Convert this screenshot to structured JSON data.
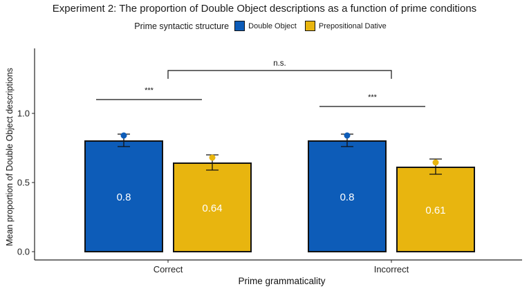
{
  "title": "Experiment 2: The proportion of Double Object descriptions as a function of prime conditions",
  "legend": {
    "title": "Prime syntactic structure",
    "items": [
      {
        "label": "Double Object",
        "color": "#0d5cb8"
      },
      {
        "label": "Prepositional Dative",
        "color": "#e8b50f"
      }
    ]
  },
  "chart_data": {
    "type": "bar",
    "title": "Experiment 2: The proportion of Double Object descriptions as a function of prime conditions",
    "xlabel": "Prime grammaticality",
    "ylabel": "Mean proportion of Double Object descriptions",
    "categories": [
      "Correct",
      "Incorrect"
    ],
    "ylim": [
      0,
      1.45
    ],
    "yticks": [
      0.0,
      0.5,
      1.0
    ],
    "ytick_labels": [
      "0.0",
      "0.5",
      "1.0"
    ],
    "series": [
      {
        "name": "Double Object",
        "color": "#0d5cb8",
        "values": [
          0.8,
          0.8
        ],
        "labels": [
          "0.8",
          "0.8"
        ],
        "points": [
          0.84,
          0.84
        ],
        "err_low": [
          0.76,
          0.76
        ],
        "err_high": [
          0.85,
          0.85
        ]
      },
      {
        "name": "Prepositional Dative",
        "color": "#e8b50f",
        "values": [
          0.64,
          0.61
        ],
        "labels": [
          "0.64",
          "0.61"
        ],
        "points": [
          0.68,
          0.645
        ],
        "err_low": [
          0.59,
          0.56
        ],
        "err_high": [
          0.7,
          0.67
        ]
      }
    ],
    "annotations": [
      {
        "text": "***",
        "category": "Correct",
        "y": 1.1
      },
      {
        "text": "***",
        "category": "Incorrect",
        "y": 1.05
      },
      {
        "text": "n.s.",
        "between": [
          "Correct",
          "Incorrect"
        ],
        "y": 1.31
      }
    ],
    "grid": false,
    "legend_position": "top"
  }
}
